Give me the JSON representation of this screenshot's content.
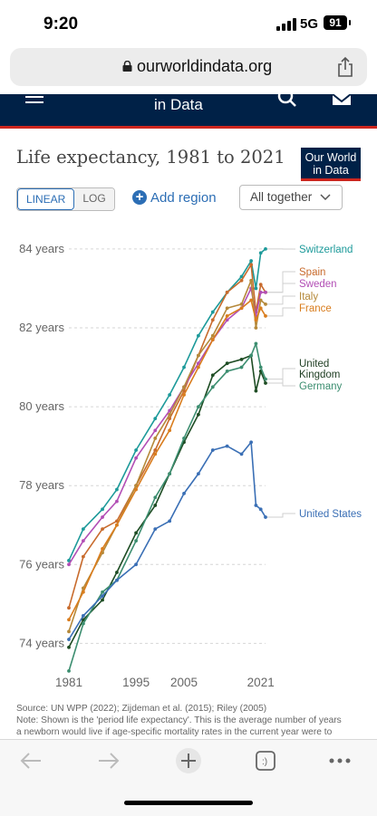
{
  "status_bar": {
    "time": "9:20",
    "network": "5G",
    "battery": "91"
  },
  "browser": {
    "url": "ourworldindata.org"
  },
  "site_header": {
    "text": "in Data"
  },
  "chart_header": {
    "title": "Life expectancy, 1981 to 2021",
    "logo_line1": "Our World",
    "logo_line2": "in Data",
    "scale_linear": "LINEAR",
    "scale_log": "LOG",
    "add_region": "Add region",
    "dropdown_value": "All together"
  },
  "chart_data": {
    "type": "line",
    "title": "Life expectancy, 1981 to 2021",
    "x_ticks": [
      "1981",
      "1995",
      "2005",
      "2021"
    ],
    "y_ticks": [
      "74 years",
      "76 years",
      "78 years",
      "80 years",
      "82 years",
      "84 years"
    ],
    "ylim": [
      73.6,
      84.3
    ],
    "xlim": [
      1981,
      2022
    ],
    "grid": "horizontal dashed",
    "legend": "right, end-of-line labels",
    "series": [
      {
        "name": "Switzerland",
        "color": "#1d9a9a",
        "points": [
          [
            1981,
            76.1
          ],
          [
            1984,
            76.9
          ],
          [
            1988,
            77.4
          ],
          [
            1991,
            77.9
          ],
          [
            1995,
            78.9
          ],
          [
            1999,
            79.7
          ],
          [
            2002,
            80.3
          ],
          [
            2005,
            81.0
          ],
          [
            2008,
            81.8
          ],
          [
            2011,
            82.4
          ],
          [
            2014,
            82.9
          ],
          [
            2017,
            83.3
          ],
          [
            2019,
            83.7
          ],
          [
            2020,
            83.0
          ],
          [
            2021,
            83.9
          ],
          [
            2022,
            84.0
          ]
        ]
      },
      {
        "name": "Spain",
        "color": "#c86b2d",
        "points": [
          [
            1981,
            74.9
          ],
          [
            1984,
            76.2
          ],
          [
            1988,
            76.9
          ],
          [
            1991,
            77.1
          ],
          [
            1995,
            78.0
          ],
          [
            1999,
            78.9
          ],
          [
            2002,
            79.7
          ],
          [
            2005,
            80.4
          ],
          [
            2008,
            81.3
          ],
          [
            2011,
            82.2
          ],
          [
            2014,
            82.9
          ],
          [
            2017,
            83.2
          ],
          [
            2019,
            83.6
          ],
          [
            2020,
            82.4
          ],
          [
            2021,
            83.1
          ],
          [
            2022,
            82.9
          ]
        ]
      },
      {
        "name": "Sweden",
        "color": "#b24eb5",
        "points": [
          [
            1981,
            76.0
          ],
          [
            1984,
            76.6
          ],
          [
            1988,
            77.2
          ],
          [
            1991,
            77.6
          ],
          [
            1995,
            78.7
          ],
          [
            1999,
            79.4
          ],
          [
            2002,
            79.9
          ],
          [
            2005,
            80.5
          ],
          [
            2008,
            81.1
          ],
          [
            2011,
            81.7
          ],
          [
            2014,
            82.2
          ],
          [
            2017,
            82.5
          ],
          [
            2019,
            83.0
          ],
          [
            2020,
            82.3
          ],
          [
            2021,
            82.9
          ],
          [
            2022,
            82.9
          ]
        ]
      },
      {
        "name": "Italy",
        "color": "#b5893a",
        "points": [
          [
            1981,
            74.3
          ],
          [
            1984,
            75.4
          ],
          [
            1988,
            76.3
          ],
          [
            1991,
            77.0
          ],
          [
            1995,
            78.0
          ],
          [
            1999,
            79.2
          ],
          [
            2002,
            79.8
          ],
          [
            2005,
            80.5
          ],
          [
            2008,
            81.3
          ],
          [
            2011,
            81.8
          ],
          [
            2014,
            82.5
          ],
          [
            2017,
            82.6
          ],
          [
            2019,
            83.2
          ],
          [
            2020,
            82.0
          ],
          [
            2021,
            82.7
          ],
          [
            2022,
            82.6
          ]
        ]
      },
      {
        "name": "France",
        "color": "#d97d1e",
        "points": [
          [
            1981,
            74.6
          ],
          [
            1984,
            75.3
          ],
          [
            1988,
            76.4
          ],
          [
            1991,
            77.0
          ],
          [
            1995,
            77.9
          ],
          [
            1999,
            78.8
          ],
          [
            2002,
            79.4
          ],
          [
            2005,
            80.3
          ],
          [
            2008,
            81.0
          ],
          [
            2011,
            81.7
          ],
          [
            2014,
            82.3
          ],
          [
            2017,
            82.5
          ],
          [
            2019,
            82.7
          ],
          [
            2020,
            82.2
          ],
          [
            2021,
            82.5
          ],
          [
            2022,
            82.3
          ]
        ]
      },
      {
        "name": "United Kingdom",
        "color": "#1e4d24",
        "points": [
          [
            1981,
            73.9
          ],
          [
            1984,
            74.6
          ],
          [
            1988,
            75.1
          ],
          [
            1991,
            75.8
          ],
          [
            1995,
            76.8
          ],
          [
            1999,
            77.5
          ],
          [
            2002,
            78.3
          ],
          [
            2005,
            79.1
          ],
          [
            2008,
            79.8
          ],
          [
            2011,
            80.8
          ],
          [
            2014,
            81.1
          ],
          [
            2017,
            81.2
          ],
          [
            2019,
            81.3
          ],
          [
            2020,
            80.4
          ],
          [
            2021,
            80.9
          ],
          [
            2022,
            80.6
          ]
        ]
      },
      {
        "name": "Germany",
        "color": "#3c8e70",
        "points": [
          [
            1981,
            73.3
          ],
          [
            1984,
            74.5
          ],
          [
            1988,
            75.3
          ],
          [
            1991,
            75.6
          ],
          [
            1995,
            76.6
          ],
          [
            1999,
            77.7
          ],
          [
            2002,
            78.3
          ],
          [
            2005,
            79.2
          ],
          [
            2008,
            80.0
          ],
          [
            2011,
            80.5
          ],
          [
            2014,
            80.9
          ],
          [
            2017,
            81.0
          ],
          [
            2019,
            81.3
          ],
          [
            2020,
            81.6
          ],
          [
            2021,
            81.0
          ],
          [
            2022,
            80.7
          ]
        ]
      },
      {
        "name": "United States",
        "color": "#3a6fb5",
        "points": [
          [
            1981,
            74.1
          ],
          [
            1984,
            74.7
          ],
          [
            1988,
            75.2
          ],
          [
            1991,
            75.6
          ],
          [
            1995,
            76.0
          ],
          [
            1999,
            76.9
          ],
          [
            2002,
            77.1
          ],
          [
            2005,
            77.8
          ],
          [
            2008,
            78.3
          ],
          [
            2011,
            78.9
          ],
          [
            2014,
            79.0
          ],
          [
            2017,
            78.8
          ],
          [
            2019,
            79.1
          ],
          [
            2020,
            77.5
          ],
          [
            2021,
            77.4
          ],
          [
            2022,
            77.2
          ]
        ]
      }
    ]
  },
  "footer": {
    "source": "Source: UN WPP (2022); Zijdeman et al. (2015); Riley (2005)",
    "note1": "Note: Shown is the 'period life expectancy'. This is the average number of years",
    "note2": "a newborn would live if age-specific mortality rates in the current year were to"
  }
}
